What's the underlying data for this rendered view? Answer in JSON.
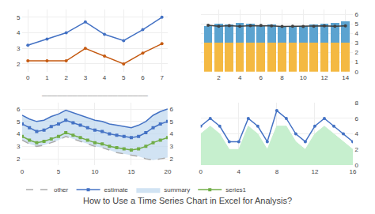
{
  "title": "How to Use a Time Series Chart in Excel for Analysis?",
  "chart_data": [
    {
      "type": "line",
      "x": [
        0,
        1,
        2,
        3,
        4,
        5,
        6,
        7
      ],
      "series": [
        {
          "color": "#4472C4",
          "marker": "circle",
          "values": [
            3.2,
            3.6,
            4.0,
            4.7,
            3.9,
            3.5,
            4.2,
            5.0
          ]
        },
        {
          "color": "#C55A11",
          "marker": "circle",
          "values": [
            2.2,
            2.2,
            2.2,
            3.0,
            2.5,
            2.0,
            2.7,
            3.3
          ]
        }
      ],
      "xlim": [
        -0.3,
        7.3
      ],
      "xticks": [
        0,
        1,
        2,
        3,
        4,
        5,
        6,
        7
      ],
      "ylim": [
        1.5,
        5.5
      ],
      "yticks": [
        2,
        3,
        4,
        5
      ],
      "grid": true
    },
    {
      "type": "bar",
      "stacked": true,
      "x": [
        1,
        2,
        3,
        4,
        5,
        6,
        7,
        8,
        9,
        10,
        11,
        12,
        13,
        14
      ],
      "series": [
        {
          "type": "bar",
          "color": "#F4B942",
          "values": [
            3.0,
            3.0,
            3.0,
            3.0,
            3.0,
            3.0,
            3.0,
            3.0,
            3.0,
            3.0,
            3.0,
            3.0,
            3.0,
            3.0
          ]
        },
        {
          "type": "bar",
          "color": "#5BA3D0",
          "values": [
            1.8,
            2.0,
            1.9,
            2.1,
            2.0,
            1.8,
            1.9,
            1.7,
            1.8,
            1.8,
            1.9,
            2.0,
            2.1,
            2.3
          ]
        },
        {
          "type": "line",
          "color": "#404040",
          "marker": "circle",
          "values": [
            4.85,
            4.75,
            4.8,
            4.75,
            4.8,
            4.82,
            4.78,
            4.72,
            4.75,
            4.72,
            4.75,
            4.78,
            4.75,
            4.78
          ]
        }
      ],
      "xlim": [
        0.3,
        14.7
      ],
      "xticks": [
        2,
        4,
        6,
        8,
        10,
        12,
        14
      ],
      "ylim": [
        0,
        6.5
      ],
      "yticks": [
        0,
        1,
        2,
        3,
        4,
        5,
        6
      ],
      "grid": true
    },
    {
      "type": "line",
      "title": "─────────────────────",
      "x": [
        0,
        1,
        2,
        3,
        4,
        5,
        6,
        7,
        8,
        9,
        10,
        11,
        12,
        13,
        14,
        15,
        16,
        17,
        18,
        19,
        20
      ],
      "series": [
        {
          "name": "series1",
          "type": "line",
          "color": "#70AD47",
          "marker": "square",
          "values": [
            3.8,
            3.5,
            3.3,
            3.4,
            3.6,
            3.8,
            4.1,
            3.9,
            3.7,
            3.5,
            3.3,
            3.2,
            3.0,
            2.9,
            2.8,
            2.7,
            2.8,
            3.0,
            3.3,
            3.5,
            3.7
          ]
        },
        {
          "name": "summary",
          "type": "band",
          "color": "#BDD7EE",
          "values": [
            5.5,
            5.2,
            5.0,
            5.1,
            5.4,
            5.6,
            5.9,
            5.7,
            5.5,
            5.3,
            5.1,
            5.0,
            4.8,
            4.7,
            4.6,
            4.5,
            4.7,
            5.0,
            5.5,
            5.8,
            6.0
          ],
          "low": [
            3.5,
            3.2,
            3.0,
            3.1,
            3.3,
            3.5,
            3.8,
            3.6,
            3.4,
            3.2,
            3.0,
            2.9,
            2.7,
            2.5,
            2.4,
            2.3,
            2.2,
            2.0,
            1.9,
            2.0,
            2.1
          ]
        },
        {
          "name": "estimate",
          "type": "line",
          "color": "#4472C4",
          "marker": "square",
          "values": [
            4.8,
            4.5,
            4.2,
            4.3,
            4.6,
            4.8,
            5.1,
            4.9,
            4.7,
            4.5,
            4.3,
            4.2,
            4.0,
            3.9,
            3.8,
            3.7,
            3.8,
            4.1,
            4.5,
            4.8,
            5.0
          ]
        },
        {
          "name": "other",
          "type": "line",
          "color": "#AAAAAA",
          "line_style": "dashed",
          "values": [
            3.5,
            3.2,
            3.0,
            3.1,
            3.3,
            3.5,
            3.8,
            3.6,
            3.4,
            3.2,
            3.0,
            2.9,
            2.7,
            2.5,
            2.4,
            2.3,
            2.2,
            2.0,
            1.9,
            2.0,
            2.1
          ]
        },
        {
          "type": "line",
          "color": "#4472C4",
          "values": [
            5.5,
            5.2,
            5.0,
            5.1,
            5.4,
            5.6,
            5.9,
            5.7,
            5.5,
            5.3,
            5.1,
            5.0,
            4.8,
            4.7,
            4.6,
            4.5,
            4.7,
            5.0,
            5.5,
            5.8,
            6.0
          ]
        }
      ],
      "xlim": [
        0,
        20
      ],
      "xticks": [
        0,
        5,
        10,
        15,
        20
      ],
      "ylim": [
        1.5,
        6.5
      ],
      "yticks": [
        2,
        3,
        4,
        5,
        6
      ],
      "y2lim": [
        1.5,
        6.5
      ],
      "y2ticks": [
        2,
        3,
        4,
        5,
        6
      ],
      "legend": "bottom",
      "grid": true
    },
    {
      "type": "area",
      "x": [
        0,
        1,
        2,
        3,
        4,
        5,
        6,
        7,
        8,
        9,
        10,
        11,
        12,
        13,
        14,
        15,
        16
      ],
      "series": [
        {
          "type": "area",
          "color": "#C6EFCE",
          "values": [
            4,
            5,
            4,
            2,
            2,
            5,
            4,
            2,
            5,
            5,
            3,
            2,
            4,
            5,
            4,
            3,
            2
          ]
        },
        {
          "type": "line",
          "color": "#4472C4",
          "marker": "circle",
          "values": [
            5,
            6,
            5,
            3,
            3,
            6,
            5,
            3,
            7,
            6,
            4,
            3,
            5,
            6,
            5,
            4,
            3
          ]
        }
      ],
      "xlim": [
        0,
        16
      ],
      "xticks": [
        0,
        4,
        8,
        12,
        16
      ],
      "ylim": [
        0,
        8
      ],
      "yticks": [
        0,
        2,
        4,
        6,
        8
      ],
      "grid": true
    }
  ]
}
